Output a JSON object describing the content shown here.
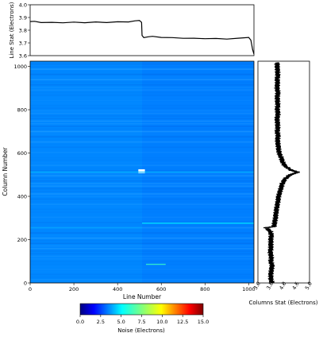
{
  "chart_data": [
    {
      "type": "line",
      "panel": "top",
      "ylabel": "Line Stat (Electrons)",
      "xlim": [
        0,
        1024
      ],
      "ylim": [
        3.6,
        4.0
      ],
      "yticks": [
        3.6,
        3.7,
        3.8,
        3.9,
        4.0
      ],
      "x": [
        0,
        20,
        50,
        100,
        150,
        200,
        250,
        300,
        350,
        400,
        450,
        480,
        500,
        510,
        512,
        520,
        540,
        560,
        600,
        650,
        700,
        750,
        800,
        850,
        900,
        950,
        1000,
        1010,
        1018,
        1024
      ],
      "values": [
        3.87,
        3.868,
        3.862,
        3.86,
        3.86,
        3.862,
        3.861,
        3.863,
        3.862,
        3.864,
        3.867,
        3.872,
        3.878,
        3.86,
        3.76,
        3.74,
        3.75,
        3.75,
        3.745,
        3.74,
        3.738,
        3.735,
        3.735,
        3.733,
        3.732,
        3.735,
        3.745,
        3.72,
        3.65,
        3.61
      ]
    },
    {
      "type": "heatmap",
      "panel": "main",
      "xlabel": "Line Number",
      "ylabel": "Column Number",
      "xlim": [
        0,
        1024
      ],
      "ylim": [
        0,
        1024
      ],
      "xticks": [
        0,
        200,
        400,
        600,
        800,
        1000
      ],
      "yticks": [
        0,
        200,
        400,
        600,
        800,
        1000
      ],
      "colormap": "jet",
      "regions": [
        {
          "x": [
            0,
            512
          ],
          "y": [
            0,
            1024
          ],
          "value": 3.86
        },
        {
          "x": [
            512,
            1024
          ],
          "y": [
            0,
            1024
          ],
          "value": 3.74
        }
      ],
      "features": [
        {
          "kind": "bright-spot",
          "x": [
            495,
            525
          ],
          "y": [
            507,
            525
          ],
          "value": 15.0
        },
        {
          "kind": "horizontal-line",
          "y": 512,
          "value": 4.6
        },
        {
          "kind": "horizontal-line",
          "y": 276,
          "x": [
            512,
            1024
          ],
          "value": 5.5
        },
        {
          "kind": "horizontal-line",
          "y": 86,
          "x": [
            530,
            620
          ],
          "value": 6.5
        },
        {
          "kind": "horizontal-line",
          "y": 255,
          "x": [
            0,
            512
          ],
          "value": 4.3
        }
      ]
    },
    {
      "type": "line",
      "panel": "right",
      "orientation": "vertical",
      "xlabel": "Columns Stat (Electrons)",
      "xlim": [
        3.0,
        5.0
      ],
      "xticks": [
        3.0,
        3.5,
        4.0,
        4.5,
        5.0
      ],
      "ylim": [
        0,
        1024
      ],
      "y": [
        0,
        20,
        40,
        60,
        80,
        100,
        120,
        140,
        160,
        180,
        200,
        220,
        240,
        255,
        260,
        280,
        300,
        320,
        340,
        360,
        380,
        400,
        420,
        440,
        460,
        480,
        500,
        512,
        520,
        540,
        560,
        580,
        600,
        620,
        640,
        660,
        680,
        700,
        720,
        740,
        760,
        780,
        800,
        820,
        840,
        860,
        880,
        900,
        920,
        940,
        960,
        980,
        1000,
        1020
      ],
      "values": [
        3.55,
        3.5,
        3.5,
        3.52,
        3.55,
        3.5,
        3.52,
        3.48,
        3.5,
        3.5,
        3.5,
        3.52,
        3.48,
        3.3,
        3.62,
        3.65,
        3.68,
        3.7,
        3.72,
        3.75,
        3.78,
        3.8,
        3.85,
        3.9,
        3.95,
        4.05,
        4.25,
        4.55,
        4.3,
        4.05,
        3.95,
        3.9,
        3.82,
        3.8,
        3.78,
        3.76,
        3.78,
        3.75,
        3.77,
        3.76,
        3.74,
        3.78,
        3.75,
        3.77,
        3.76,
        3.75,
        3.78,
        3.74,
        3.76,
        3.75,
        3.77,
        3.76,
        3.75,
        3.74
      ]
    }
  ],
  "colorbar": {
    "label": "Noise (Electrons)",
    "range": [
      0.0,
      15.0
    ],
    "ticks": [
      "0.0",
      "2.5",
      "5.0",
      "7.5",
      "10.0",
      "12.5",
      "15.0"
    ],
    "colormap": "jet"
  }
}
